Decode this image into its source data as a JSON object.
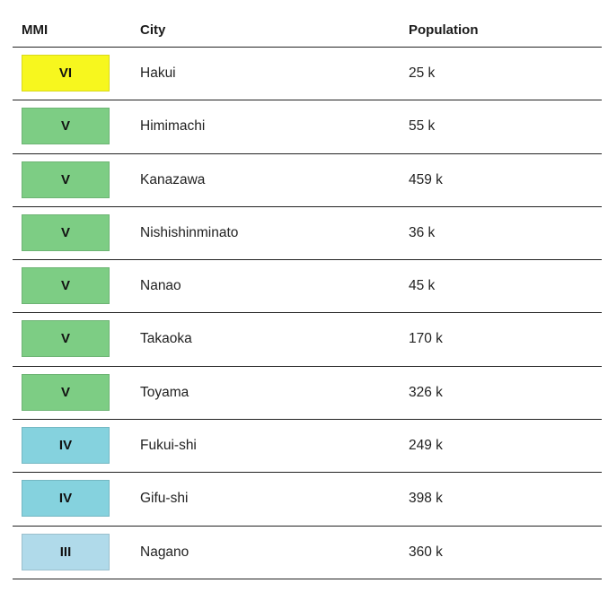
{
  "headers": {
    "mmi": "MMI",
    "city": "City",
    "population": "Population"
  },
  "mmi_colors": {
    "VI": "#f7f71e",
    "V": "#7dcd84",
    "IV": "#85d2de",
    "III": "#b0daea"
  },
  "rows": [
    {
      "mmi": "VI",
      "city": "Hakui",
      "population": "25 k"
    },
    {
      "mmi": "V",
      "city": "Himimachi",
      "population": "55 k"
    },
    {
      "mmi": "V",
      "city": "Kanazawa",
      "population": "459 k"
    },
    {
      "mmi": "V",
      "city": "Nishishinminato",
      "population": "36 k"
    },
    {
      "mmi": "V",
      "city": "Nanao",
      "population": "45 k"
    },
    {
      "mmi": "V",
      "city": "Takaoka",
      "population": "170 k"
    },
    {
      "mmi": "V",
      "city": "Toyama",
      "population": "326 k"
    },
    {
      "mmi": "IV",
      "city": "Fukui-shi",
      "population": "249 k"
    },
    {
      "mmi": "IV",
      "city": "Gifu-shi",
      "population": "398 k"
    },
    {
      "mmi": "III",
      "city": "Nagano",
      "population": "360 k"
    }
  ]
}
